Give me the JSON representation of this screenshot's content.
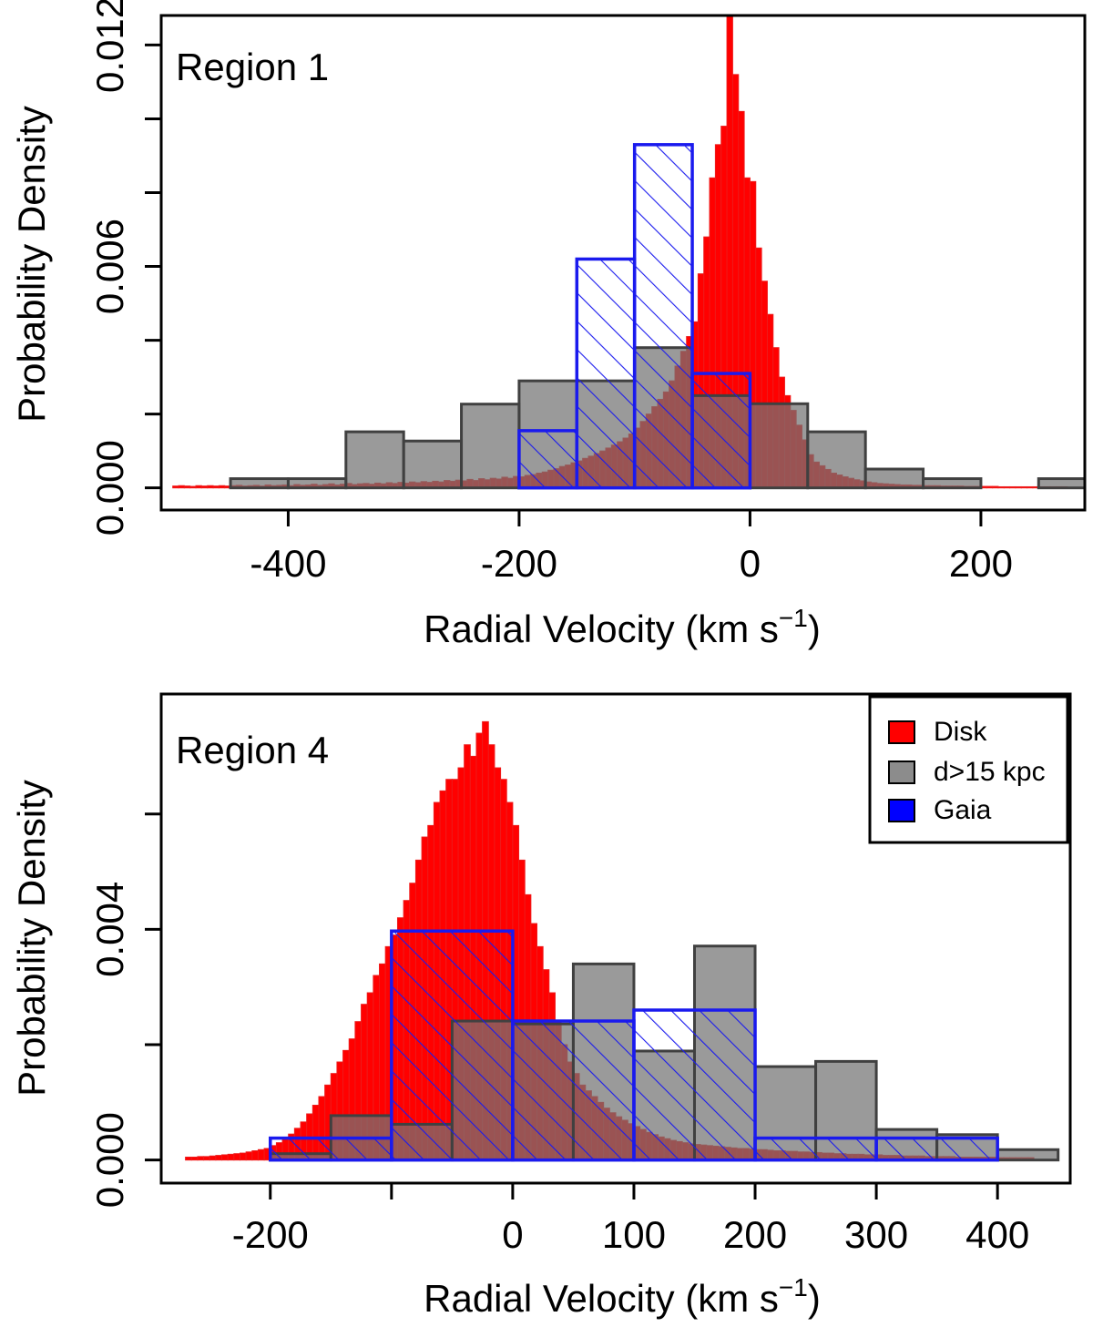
{
  "chart_data": [
    {
      "type": "bar",
      "panel_label": "Region 1",
      "xlabel": "Radial Velocity (km s",
      "xlabel_sup": "−1",
      "xlabel_close": ")",
      "ylabel": "Probability Density",
      "xlim": [
        -510,
        290
      ],
      "ylim": [
        -0.0006,
        0.0128
      ],
      "x_ticks": [
        -400,
        -200,
        0,
        200
      ],
      "x_tick_labels": [
        "-400",
        "-200",
        "0",
        "200"
      ],
      "y_ticks": [
        0.0,
        0.002,
        0.004,
        0.006,
        0.008,
        0.01,
        0.012
      ],
      "y_tick_labels": [
        "0.000",
        "",
        "",
        "0.006",
        "",
        "",
        "0.012"
      ],
      "colors": {
        "disk": "#ff0000",
        "disk_edge": "#ee1a1a",
        "far": "#999999",
        "far_edge": "#404040",
        "gaia": "#1a1aee"
      },
      "series": [
        {
          "name": "Disk",
          "bin_width": 5,
          "bin_centers": [
            -497.5,
            -492.5,
            -487.5,
            -482.5,
            -477.5,
            -472.5,
            -467.5,
            -462.5,
            -457.5,
            -452.5,
            -447.5,
            -442.5,
            -437.5,
            -432.5,
            -427.5,
            -422.5,
            -417.5,
            -412.5,
            -407.5,
            -402.5,
            -397.5,
            -392.5,
            -387.5,
            -382.5,
            -377.5,
            -372.5,
            -367.5,
            -362.5,
            -357.5,
            -352.5,
            -347.5,
            -342.5,
            -337.5,
            -332.5,
            -327.5,
            -322.5,
            -317.5,
            -312.5,
            -307.5,
            -302.5,
            -297.5,
            -292.5,
            -287.5,
            -282.5,
            -277.5,
            -272.5,
            -267.5,
            -262.5,
            -257.5,
            -252.5,
            -247.5,
            -242.5,
            -237.5,
            -232.5,
            -227.5,
            -222.5,
            -217.5,
            -212.5,
            -207.5,
            -202.5,
            -197.5,
            -192.5,
            -187.5,
            -182.5,
            -177.5,
            -172.5,
            -167.5,
            -162.5,
            -157.5,
            -152.5,
            -147.5,
            -142.5,
            -137.5,
            -132.5,
            -127.5,
            -122.5,
            -117.5,
            -112.5,
            -107.5,
            -102.5,
            -97.5,
            -92.5,
            -87.5,
            -82.5,
            -77.5,
            -72.5,
            -67.5,
            -62.5,
            -57.5,
            -52.5,
            -47.5,
            -42.5,
            -37.5,
            -32.5,
            -27.5,
            -22.5,
            -17.5,
            -12.5,
            -7.5,
            -2.5,
            2.5,
            7.5,
            12.5,
            17.5,
            22.5,
            27.5,
            32.5,
            37.5,
            42.5,
            47.5,
            52.5,
            57.5,
            62.5,
            67.5,
            72.5,
            77.5,
            82.5,
            87.5,
            92.5,
            97.5,
            102.5,
            107.5,
            112.5,
            117.5,
            122.5,
            127.5,
            132.5,
            137.5,
            142.5,
            147.5,
            152.5,
            157.5,
            162.5,
            167.5,
            172.5,
            177.5,
            182.5,
            187.5,
            192.5,
            197.5,
            202.5,
            207.5,
            212.5,
            217.5,
            222.5,
            227.5,
            232.5,
            237.5,
            242.5,
            247.5,
            252.5,
            257.5,
            262.5,
            267.5,
            272.5,
            277.5,
            282.5,
            287.5
          ],
          "values": [
            5e-05,
            6e-05,
            5e-05,
            4e-05,
            6e-05,
            5e-05,
            6e-05,
            5e-05,
            6e-05,
            5e-05,
            6e-05,
            7e-05,
            5e-05,
            6e-05,
            7e-05,
            5e-05,
            8e-05,
            6e-05,
            7e-05,
            8e-05,
            6e-05,
            9e-05,
            7e-05,
            8e-05,
            0.0001,
            7e-05,
            9e-05,
            0.00011,
            8e-05,
            0.0001,
            0.00012,
            9e-05,
            0.00011,
            0.00012,
            0.0001,
            0.00013,
            0.00011,
            0.00014,
            0.00012,
            0.00015,
            0.00013,
            0.00016,
            0.00014,
            0.00017,
            0.00015,
            0.00018,
            0.00016,
            0.0002,
            0.00018,
            0.00021,
            0.00019,
            0.00023,
            0.0002,
            0.00025,
            0.00022,
            0.00026,
            0.00024,
            0.00029,
            0.00026,
            0.00031,
            0.0003,
            0.00034,
            0.00036,
            0.0004,
            0.00043,
            0.00048,
            0.00052,
            0.00058,
            0.00062,
            0.00068,
            0.00073,
            0.0008,
            0.00086,
            0.00093,
            0.001,
            0.00108,
            0.00116,
            0.00125,
            0.00135,
            0.00146,
            0.00162,
            0.0018,
            0.002,
            0.0022,
            0.0024,
            0.0026,
            0.0029,
            0.0033,
            0.0037,
            0.0041,
            0.0045,
            0.0058,
            0.0068,
            0.0084,
            0.0093,
            0.0098,
            0.0128,
            0.0112,
            0.0102,
            0.0084,
            0.0083,
            0.0065,
            0.0056,
            0.0047,
            0.0038,
            0.003,
            0.0025,
            0.0021,
            0.0017,
            0.0013,
            0.0009,
            0.0007,
            0.0006,
            0.0005,
            0.0004,
            0.00035,
            0.0003,
            0.00026,
            0.00022,
            0.00019,
            0.00016,
            0.00014,
            0.00012,
            0.00011,
            0.0001,
            9e-05,
            8e-05,
            8e-05,
            7e-05,
            7e-05,
            6e-05,
            6e-05,
            6e-05,
            5e-05,
            5e-05,
            5e-05,
            5e-05,
            4e-05,
            4e-05,
            4e-05,
            4e-05,
            4e-05,
            4e-05,
            3e-05,
            3e-05,
            3e-05,
            3e-05,
            3e-05,
            3e-05,
            3e-05,
            3e-05,
            3e-05,
            3e-05,
            3e-05,
            3e-05
          ]
        },
        {
          "name": "d>15 kpc",
          "bin_edges": [
            -450,
            -400,
            -350,
            -300,
            -250,
            -200,
            -150,
            -100,
            -50,
            0,
            50,
            100,
            150,
            200,
            250,
            300
          ],
          "values": [
            0.00025,
            0.00025,
            0.00152,
            0.00127,
            0.00227,
            0.0029,
            0.0029,
            0.0038,
            0.0025,
            0.00228,
            0.00152,
            0.00051,
            0.00025,
            0.0,
            0.00025
          ]
        },
        {
          "name": "Gaia",
          "bin_edges": [
            -200,
            -150,
            -100,
            -50,
            0
          ],
          "values": [
            0.00155,
            0.0062,
            0.0093,
            0.0031
          ]
        }
      ]
    },
    {
      "type": "bar",
      "panel_label": "Region 4",
      "xlabel": "Radial Velocity (km s",
      "xlabel_sup": "−1",
      "xlabel_close": ")",
      "ylabel": "Probability Density",
      "xlim": [
        -290,
        460
      ],
      "ylim": [
        -0.0004,
        0.00808
      ],
      "x_ticks": [
        -200,
        -100,
        0,
        100,
        200,
        300,
        400
      ],
      "x_tick_labels": [
        "-200",
        "",
        "0",
        "100",
        "200",
        "300",
        "400"
      ],
      "y_ticks": [
        0.0,
        0.002,
        0.004,
        0.006
      ],
      "y_tick_labels": [
        "0.000",
        "",
        "0.004",
        ""
      ],
      "colors": {
        "disk": "#ff0000",
        "disk_edge": "#ee1a1a",
        "far": "#999999",
        "far_edge": "#404040",
        "gaia": "#1a1aee"
      },
      "legend": {
        "position": "top-right",
        "entries": [
          {
            "label": "Disk",
            "fill": "#ff0000"
          },
          {
            "label": "d>15 kpc",
            "fill": "#8c8c8c"
          },
          {
            "label": "Gaia",
            "fill": "#0000ff"
          }
        ]
      },
      "series": [
        {
          "name": "Disk",
          "bin_width": 5,
          "bin_centers": [
            -267.5,
            -262.5,
            -257.5,
            -252.5,
            -247.5,
            -242.5,
            -237.5,
            -232.5,
            -227.5,
            -222.5,
            -217.5,
            -212.5,
            -207.5,
            -202.5,
            -197.5,
            -192.5,
            -187.5,
            -182.5,
            -177.5,
            -172.5,
            -167.5,
            -162.5,
            -157.5,
            -152.5,
            -147.5,
            -142.5,
            -137.5,
            -132.5,
            -127.5,
            -122.5,
            -117.5,
            -112.5,
            -107.5,
            -102.5,
            -97.5,
            -92.5,
            -87.5,
            -82.5,
            -77.5,
            -72.5,
            -67.5,
            -62.5,
            -57.5,
            -52.5,
            -47.5,
            -42.5,
            -37.5,
            -32.5,
            -27.5,
            -22.5,
            -17.5,
            -12.5,
            -7.5,
            -2.5,
            2.5,
            7.5,
            12.5,
            17.5,
            22.5,
            27.5,
            32.5,
            37.5,
            42.5,
            47.5,
            52.5,
            57.5,
            62.5,
            67.5,
            72.5,
            77.5,
            82.5,
            87.5,
            92.5,
            97.5,
            102.5,
            107.5,
            112.5,
            117.5,
            122.5,
            127.5,
            132.5,
            137.5,
            142.5,
            147.5,
            152.5,
            157.5,
            162.5,
            167.5,
            172.5,
            177.5,
            182.5,
            187.5,
            192.5,
            197.5,
            202.5,
            207.5,
            212.5,
            217.5,
            222.5,
            227.5,
            232.5,
            237.5,
            242.5,
            247.5,
            252.5,
            257.5,
            262.5,
            267.5,
            272.5,
            277.5,
            282.5,
            287.5,
            292.5,
            297.5,
            302.5,
            307.5,
            312.5,
            317.5,
            322.5,
            327.5,
            332.5,
            337.5,
            342.5,
            347.5,
            352.5,
            357.5,
            362.5,
            367.5,
            372.5,
            377.5,
            382.5,
            387.5,
            392.5,
            397.5,
            402.5,
            407.5,
            412.5,
            417.5,
            422.5,
            427.5,
            432.5
          ],
          "values": [
            5e-05,
            5e-05,
            6e-05,
            6e-05,
            7e-05,
            8e-05,
            9e-05,
            0.0001,
            0.00011,
            0.00012,
            0.00014,
            0.00016,
            0.00018,
            0.0002,
            0.00025,
            0.0003,
            0.00036,
            0.00045,
            0.00055,
            0.00066,
            0.0008,
            0.00095,
            0.0011,
            0.0013,
            0.0015,
            0.0017,
            0.0019,
            0.0021,
            0.0024,
            0.0027,
            0.0029,
            0.0032,
            0.0034,
            0.0037,
            0.0039,
            0.0042,
            0.0045,
            0.0048,
            0.0052,
            0.0056,
            0.0058,
            0.0062,
            0.0064,
            0.0066,
            0.0066,
            0.0068,
            0.0072,
            0.007,
            0.0074,
            0.0076,
            0.0072,
            0.0068,
            0.0066,
            0.0062,
            0.0058,
            0.0052,
            0.0046,
            0.0041,
            0.0037,
            0.0033,
            0.0029,
            0.0024,
            0.002,
            0.0017,
            0.0015,
            0.0013,
            0.0012,
            0.0011,
            0.001,
            0.0009,
            0.00082,
            0.00075,
            0.00069,
            0.00063,
            0.00058,
            0.00053,
            0.00048,
            0.00044,
            0.0004,
            0.00037,
            0.00034,
            0.00032,
            0.0003,
            0.00028,
            0.00027,
            0.00026,
            0.00025,
            0.00024,
            0.00023,
            0.00022,
            0.00021,
            0.0002,
            0.0002,
            0.00019,
            0.00018,
            0.00018,
            0.00017,
            0.00016,
            0.00016,
            0.00015,
            0.00015,
            0.00014,
            0.00014,
            0.00013,
            0.00013,
            0.00012,
            0.00012,
            0.00011,
            0.00011,
            0.0001,
            0.0001,
            0.0001,
            9e-05,
            9e-05,
            9e-05,
            8e-05,
            8e-05,
            8e-05,
            7e-05,
            7e-05,
            7e-05,
            7e-05,
            6e-05,
            6e-05,
            6e-05,
            6e-05,
            6e-05,
            5e-05,
            5e-05,
            5e-05,
            5e-05,
            5e-05,
            5e-05,
            5e-05,
            4e-05,
            4e-05,
            4e-05,
            4e-05,
            4e-05,
            4e-05
          ]
        },
        {
          "name": "d>15 kpc",
          "bin_edges": [
            -200,
            -150,
            -100,
            -50,
            0,
            50,
            100,
            150,
            200,
            250,
            300,
            350,
            400,
            450
          ],
          "values": [
            0.00011,
            0.00077,
            0.00062,
            0.00241,
            0.00236,
            0.0034,
            0.00189,
            0.00371,
            0.00162,
            0.00171,
            0.00053,
            0.00044,
            0.00018
          ]
        },
        {
          "name": "Gaia",
          "bin_edges": [
            -200,
            -100,
            0,
            100,
            200,
            300,
            400
          ],
          "values": [
            0.00038,
            0.00397,
            0.00241,
            0.0026,
            0.00038,
            0.00038
          ]
        }
      ]
    }
  ]
}
